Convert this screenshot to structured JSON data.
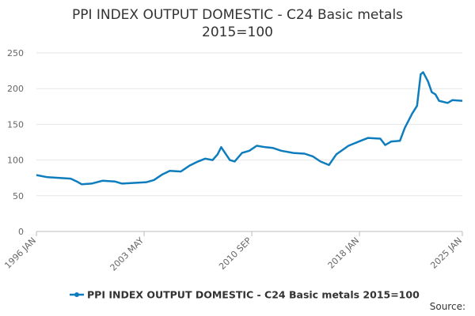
{
  "chart_data": {
    "type": "line",
    "title": [
      "PPI INDEX OUTPUT DOMESTIC - C24 Basic metals",
      "2015=100"
    ],
    "x": [
      "1996 JAN",
      "1996 OCT",
      "1997 AUG",
      "1998 MAY",
      "1998 OCT",
      "1999 FEB",
      "1999 OCT",
      "2000 JUL",
      "2001 MAY",
      "2001 NOV",
      "2002 SEP",
      "2003 JUL",
      "2004 JAN",
      "2004 AUG",
      "2005 FEB",
      "2005 NOV",
      "2006 JUN",
      "2007 JAN",
      "2007 JUL",
      "2008 JAN",
      "2008 MAY",
      "2008 AUG",
      "2009 MAR",
      "2009 JUL",
      "2010 JAN",
      "2010 JUL",
      "2011 JAN",
      "2011 AUG",
      "2012 FEB",
      "2012 SEP",
      "2013 JUL",
      "2014 APR",
      "2014 NOV",
      "2015 MAY",
      "2015 DEC",
      "2016 JUN",
      "2017 APR",
      "2018 FEB",
      "2018 AUG",
      "2019 JUN",
      "2019 OCT",
      "2020 MAR",
      "2020 OCT",
      "2021 FEB",
      "2021 AUG",
      "2021 DEC",
      "2022 MAR",
      "2022 MAY",
      "2022 SEP",
      "2022 DEC",
      "2023 MAR",
      "2023 JUN",
      "2024 JAN",
      "2024 MAY",
      "2025 JAN"
    ],
    "series": [
      {
        "name": "PPI INDEX OUTPUT DOMESTIC - C24 Basic metals 2015=100",
        "color": "#0e7dbd",
        "values": [
          79,
          76,
          75,
          74,
          70,
          66,
          67,
          71,
          70,
          67,
          68,
          69,
          72,
          80,
          85,
          84,
          92,
          98,
          102,
          100,
          108,
          118,
          100,
          98,
          110,
          113,
          120,
          118,
          117,
          113,
          110,
          109,
          105,
          98,
          93,
          108,
          120,
          127,
          131,
          130,
          121,
          126,
          127,
          145,
          165,
          176,
          220,
          223,
          210,
          195,
          192,
          183,
          180,
          184,
          183
        ]
      }
    ],
    "xticks": [
      "1996 JAN",
      "2003 MAY",
      "2010 SEP",
      "2018 JAN",
      "2025 JAN"
    ],
    "xlim": [
      "1996 JAN",
      "2025 JAN"
    ],
    "ylim": [
      0,
      250
    ],
    "yticks": [
      0,
      50,
      100,
      150,
      200,
      250
    ],
    "grid": true,
    "legend": "bottom",
    "source": "Source:"
  }
}
